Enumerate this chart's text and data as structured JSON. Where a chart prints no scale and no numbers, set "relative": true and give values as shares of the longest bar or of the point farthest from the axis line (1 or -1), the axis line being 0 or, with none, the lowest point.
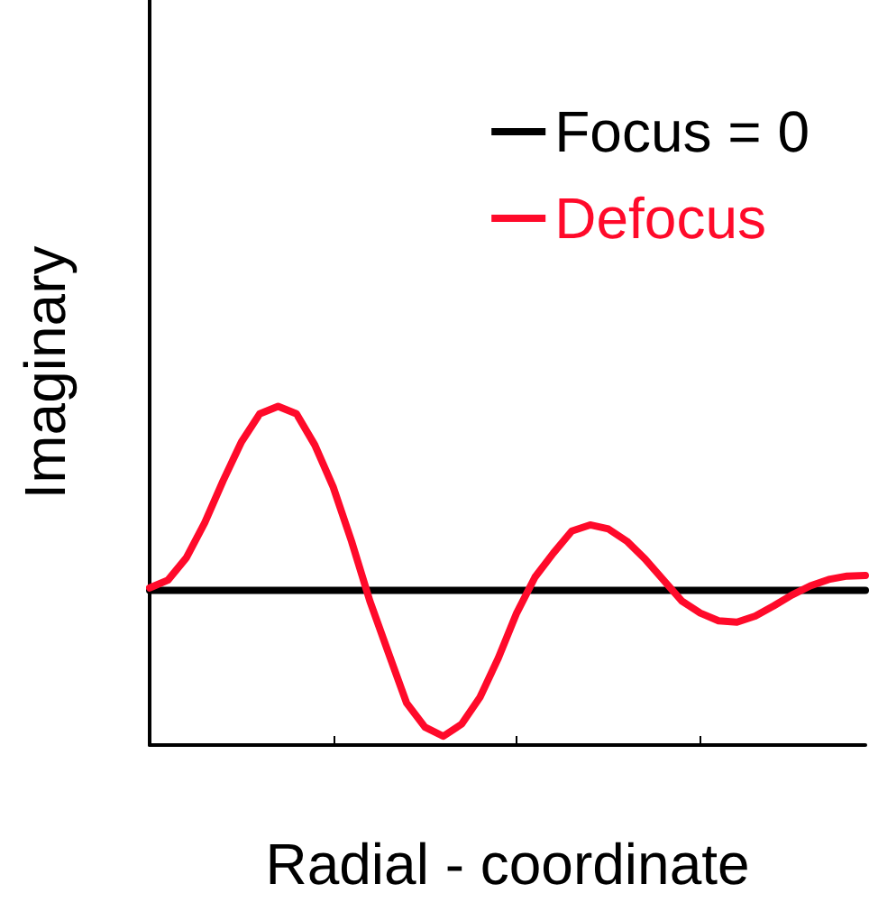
{
  "chart_data": {
    "type": "line",
    "relative": true,
    "xlabel": "Radial - coordinate",
    "ylabel": "Imaginary",
    "legend": "top right",
    "marker": "none",
    "line_style": "solid",
    "grid": false,
    "tick_labels": false,
    "categories": [
      null,
      null,
      null,
      null,
      null,
      null,
      null,
      null,
      null,
      null,
      null,
      null,
      null,
      null,
      null,
      null,
      null,
      null,
      null,
      null,
      null,
      null,
      null,
      null,
      null,
      null,
      null,
      null,
      null,
      null,
      null,
      null,
      null,
      null,
      null,
      null,
      null,
      null,
      null,
      null
    ],
    "series": [
      {
        "name": "Focus = 0",
        "color": "#000000",
        "values": [
          0.457,
          0.457,
          0.457,
          0.457,
          0.457,
          0.457,
          0.457,
          0.457,
          0.457,
          0.457,
          0.457,
          0.457,
          0.457,
          0.457,
          0.457,
          0.457,
          0.457,
          0.457,
          0.457,
          0.457,
          0.457,
          0.457,
          0.457,
          0.457,
          0.457,
          0.457,
          0.457,
          0.457,
          0.457,
          0.457,
          0.457,
          0.457,
          0.457,
          0.457,
          0.457,
          0.457,
          0.457,
          0.457,
          0.457,
          0.457
        ]
      },
      {
        "name": "Defocus",
        "color": "#ff0a2a",
        "values": [
          0.464,
          0.487,
          0.553,
          0.656,
          0.78,
          0.895,
          0.978,
          1,
          0.978,
          0.886,
          0.762,
          0.602,
          0.425,
          0.274,
          0.124,
          0.053,
          0.026,
          0.062,
          0.141,
          0.257,
          0.39,
          0.496,
          0.567,
          0.632,
          0.65,
          0.638,
          0.602,
          0.549,
          0.487,
          0.425,
          0.39,
          0.367,
          0.363,
          0.381,
          0.411,
          0.443,
          0.47,
          0.489,
          0.499,
          0.501
        ]
      }
    ]
  }
}
